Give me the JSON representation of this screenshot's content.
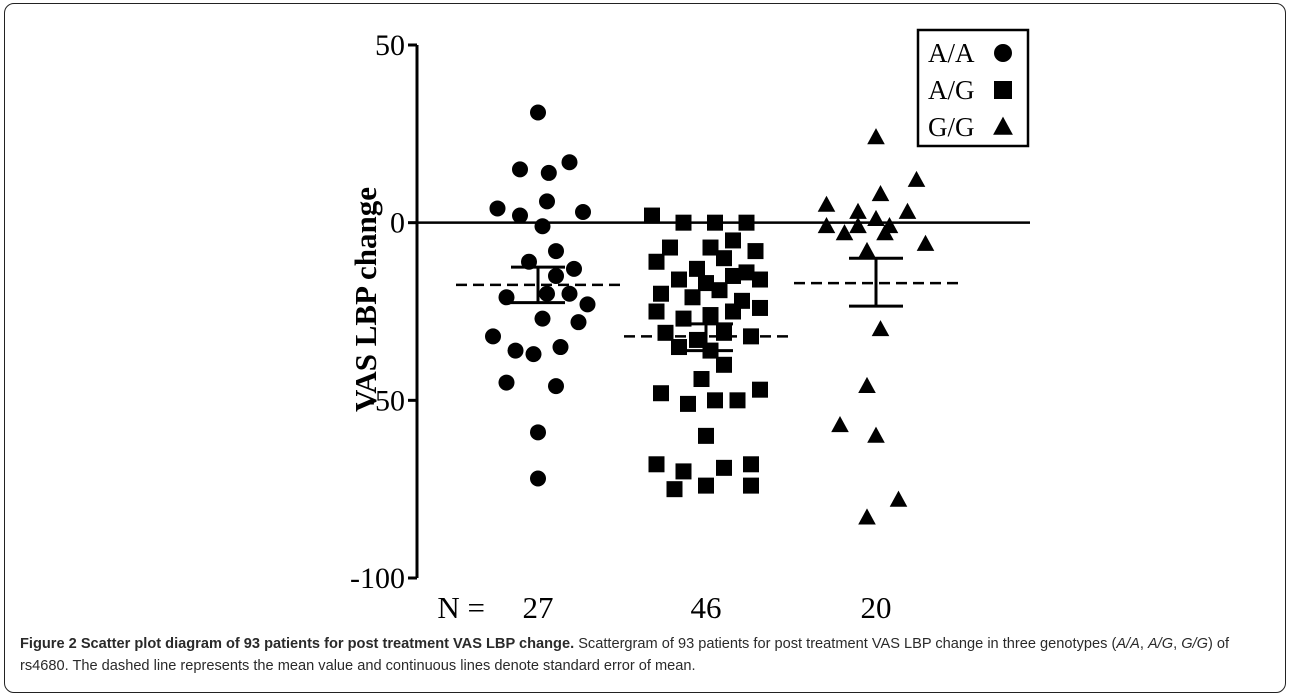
{
  "chart_data": {
    "type": "scatter",
    "title": "",
    "xlabel": "",
    "ylabel": "VAS LBP change",
    "ylim": [
      -100,
      50
    ],
    "yticks": [
      50,
      0,
      -50,
      -100
    ],
    "yticklabels": [
      "50",
      "0",
      "-50",
      "-100"
    ],
    "zero_line": 0,
    "n_prefix": "N =",
    "legend_position": "top-right",
    "groups": [
      {
        "name": "A/A",
        "marker": "circle",
        "n_label": "27",
        "mean": -17.5,
        "sem_upper": -12.5,
        "sem_lower": -22.5,
        "points": [
          [
            0.0,
            31
          ],
          [
            -0.2,
            15
          ],
          [
            0.12,
            14
          ],
          [
            0.35,
            17
          ],
          [
            -0.45,
            4
          ],
          [
            -0.2,
            2
          ],
          [
            0.1,
            6
          ],
          [
            0.5,
            3
          ],
          [
            0.05,
            -1
          ],
          [
            0.2,
            -8
          ],
          [
            -0.1,
            -11
          ],
          [
            0.4,
            -13
          ],
          [
            0.2,
            -15
          ],
          [
            0.1,
            -20
          ],
          [
            -0.35,
            -21
          ],
          [
            0.35,
            -20
          ],
          [
            0.55,
            -23
          ],
          [
            -0.5,
            -32
          ],
          [
            0.05,
            -27
          ],
          [
            0.45,
            -28
          ],
          [
            -0.25,
            -36
          ],
          [
            0.25,
            -35
          ],
          [
            -0.05,
            -37
          ],
          [
            -0.35,
            -45
          ],
          [
            0.2,
            -46
          ],
          [
            0.0,
            -59
          ],
          [
            0.0,
            -72
          ]
        ]
      },
      {
        "name": "A/G",
        "marker": "square",
        "n_label": "46",
        "mean": -32,
        "sem_upper": -28.5,
        "sem_lower": -36,
        "points": [
          [
            -0.6,
            2
          ],
          [
            -0.25,
            0
          ],
          [
            0.1,
            0
          ],
          [
            0.45,
            0
          ],
          [
            -0.4,
            -7
          ],
          [
            0.05,
            -7
          ],
          [
            0.3,
            -5
          ],
          [
            0.55,
            -8
          ],
          [
            -0.55,
            -11
          ],
          [
            -0.1,
            -13
          ],
          [
            0.2,
            -10
          ],
          [
            0.45,
            -14
          ],
          [
            -0.3,
            -16
          ],
          [
            0.0,
            -17
          ],
          [
            0.3,
            -15
          ],
          [
            0.6,
            -16
          ],
          [
            -0.5,
            -20
          ],
          [
            -0.15,
            -21
          ],
          [
            0.15,
            -19
          ],
          [
            0.4,
            -22
          ],
          [
            -0.55,
            -25
          ],
          [
            -0.25,
            -27
          ],
          [
            0.05,
            -26
          ],
          [
            0.3,
            -25
          ],
          [
            0.6,
            -24
          ],
          [
            -0.45,
            -31
          ],
          [
            -0.1,
            -33
          ],
          [
            0.2,
            -31
          ],
          [
            0.5,
            -32
          ],
          [
            -0.3,
            -35
          ],
          [
            0.05,
            -36
          ],
          [
            0.2,
            -40
          ],
          [
            -0.05,
            -44
          ],
          [
            -0.5,
            -48
          ],
          [
            -0.2,
            -51
          ],
          [
            0.1,
            -50
          ],
          [
            0.35,
            -50
          ],
          [
            0.6,
            -47
          ],
          [
            0.0,
            -60
          ],
          [
            -0.55,
            -68
          ],
          [
            -0.25,
            -70
          ],
          [
            0.2,
            -69
          ],
          [
            0.5,
            -68
          ],
          [
            -0.35,
            -75
          ],
          [
            0.0,
            -74
          ],
          [
            0.5,
            -74
          ]
        ]
      },
      {
        "name": "G/G",
        "marker": "triangle",
        "n_label": "20",
        "mean": -17,
        "sem_upper": -10,
        "sem_lower": -23.5,
        "points": [
          [
            0.0,
            24
          ],
          [
            0.45,
            12
          ],
          [
            0.05,
            8
          ],
          [
            -0.55,
            5
          ],
          [
            -0.2,
            3
          ],
          [
            0.35,
            3
          ],
          [
            -0.55,
            -1
          ],
          [
            -0.2,
            -1
          ],
          [
            0.15,
            -1
          ],
          [
            0.0,
            1
          ],
          [
            -0.35,
            -3
          ],
          [
            0.55,
            -6
          ],
          [
            0.1,
            -3
          ],
          [
            -0.1,
            -8
          ],
          [
            0.05,
            -30
          ],
          [
            -0.1,
            -46
          ],
          [
            -0.4,
            -57
          ],
          [
            0.0,
            -60
          ],
          [
            0.25,
            -78
          ],
          [
            -0.1,
            -83
          ]
        ]
      }
    ],
    "caption": {
      "label": "Figure 2 Scatter plot diagram of 93 patients for post treatment VAS LBP change.",
      "text_before": " Scattergram of 93 patients for post treatment VAS LBP change in three genotypes (",
      "g1": "A/A",
      "sep1": ", ",
      "g2": "A/G",
      "sep2": ", ",
      "g3": "G/G",
      "text_after": ") of rs4680. The dashed line represents the mean value and continuous lines denote standard error of mean."
    }
  }
}
